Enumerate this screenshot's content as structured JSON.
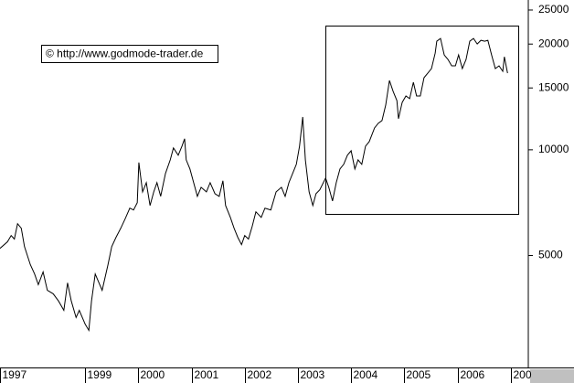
{
  "chart_data": {
    "type": "line",
    "log_scale": true,
    "color": "#000000",
    "annotation": "© http://www.godmode-trader.de",
    "xlim": [
      1997.4,
      2007.33
    ],
    "xticks": [
      {
        "value": 1997.4,
        "label": "1997"
      },
      1999,
      2000,
      2001,
      2002,
      2003,
      2004,
      2005,
      2006,
      {
        "value": 2007,
        "label": "200"
      }
    ],
    "ylim": [
      2400,
      26700
    ],
    "yticks": [
      5000,
      10000,
      15000,
      20000,
      25000
    ],
    "x": [
      1997.4,
      1997.54,
      1997.61,
      1997.67,
      1997.73,
      1997.8,
      1997.86,
      1997.97,
      1998.05,
      1998.12,
      1998.21,
      1998.29,
      1998.4,
      1998.5,
      1998.6,
      1998.67,
      1998.74,
      1998.83,
      1998.89,
      1999.0,
      1999.07,
      1999.12,
      1999.19,
      1999.26,
      1999.32,
      1999.43,
      1999.5,
      1999.58,
      1999.67,
      1999.75,
      1999.84,
      1999.91,
      1999.98,
      2000.01,
      2000.08,
      2000.15,
      2000.22,
      2000.29,
      2000.35,
      2000.42,
      2000.51,
      2000.6,
      2000.66,
      2000.75,
      2000.82,
      2000.87,
      2000.9,
      2000.97,
      2001.04,
      2001.11,
      2001.18,
      2001.28,
      2001.35,
      2001.44,
      2001.52,
      2001.59,
      2001.64,
      2001.73,
      2001.8,
      2001.87,
      2001.94,
      2002.0,
      2002.07,
      2002.14,
      2002.21,
      2002.31,
      2002.38,
      2002.49,
      2002.59,
      2002.69,
      2002.76,
      2002.83,
      2002.9,
      2002.97,
      2003.03,
      2003.09,
      2003.14,
      2003.21,
      2003.28,
      2003.34,
      2003.41,
      2003.52,
      2003.58,
      2003.65,
      2003.72,
      2003.79,
      2003.86,
      2003.93,
      2004.0,
      2004.07,
      2004.13,
      2004.2,
      2004.27,
      2004.34,
      2004.44,
      2004.51,
      2004.58,
      2004.65,
      2004.72,
      2004.79,
      2004.86,
      2004.89,
      2004.96,
      2005.03,
      2005.1,
      2005.17,
      2005.23,
      2005.3,
      2005.37,
      2005.44,
      2005.51,
      2005.58,
      2005.61,
      2005.68,
      2005.75,
      2005.82,
      2005.89,
      2005.96,
      2006.02,
      2006.09,
      2006.16,
      2006.23,
      2006.3,
      2006.37,
      2006.44,
      2006.51,
      2006.57,
      2006.64,
      2006.71,
      2006.78,
      2006.85,
      2006.88,
      2006.94
    ],
    "values": [
      5240,
      5470,
      5700,
      5570,
      6160,
      5980,
      5300,
      4710,
      4430,
      4130,
      4490,
      3980,
      3890,
      3710,
      3490,
      4180,
      3710,
      3330,
      3490,
      3190,
      3060,
      3710,
      4430,
      4180,
      3980,
      4710,
      5300,
      5630,
      5980,
      6350,
      6820,
      6740,
      7070,
      9200,
      7590,
      8060,
      6940,
      7590,
      8060,
      7370,
      8560,
      9360,
      10120,
      9650,
      10240,
      10750,
      9360,
      8820,
      8060,
      7370,
      7820,
      7590,
      8060,
      7500,
      7370,
      8160,
      6940,
      6420,
      5980,
      5630,
      5370,
      5700,
      5570,
      6050,
      6660,
      6420,
      6820,
      6740,
      7590,
      7820,
      7370,
      8060,
      8560,
      9090,
      10240,
      12400,
      9360,
      7590,
      6940,
      7500,
      7690,
      8310,
      7820,
      7150,
      8060,
      8820,
      9090,
      9650,
      9940,
      8820,
      9360,
      9090,
      10240,
      10550,
      11540,
      11900,
      12110,
      13410,
      15750,
      14660,
      13810,
      12260,
      13650,
      14230,
      13980,
      15570,
      14230,
      14230,
      16040,
      16530,
      17030,
      18850,
      20380,
      20750,
      18620,
      18080,
      17340,
      17340,
      18620,
      17030,
      18080,
      20380,
      20750,
      20010,
      20500,
      20380,
      20500,
      18620,
      17030,
      17340,
      16730,
      18400,
      16530
    ]
  }
}
